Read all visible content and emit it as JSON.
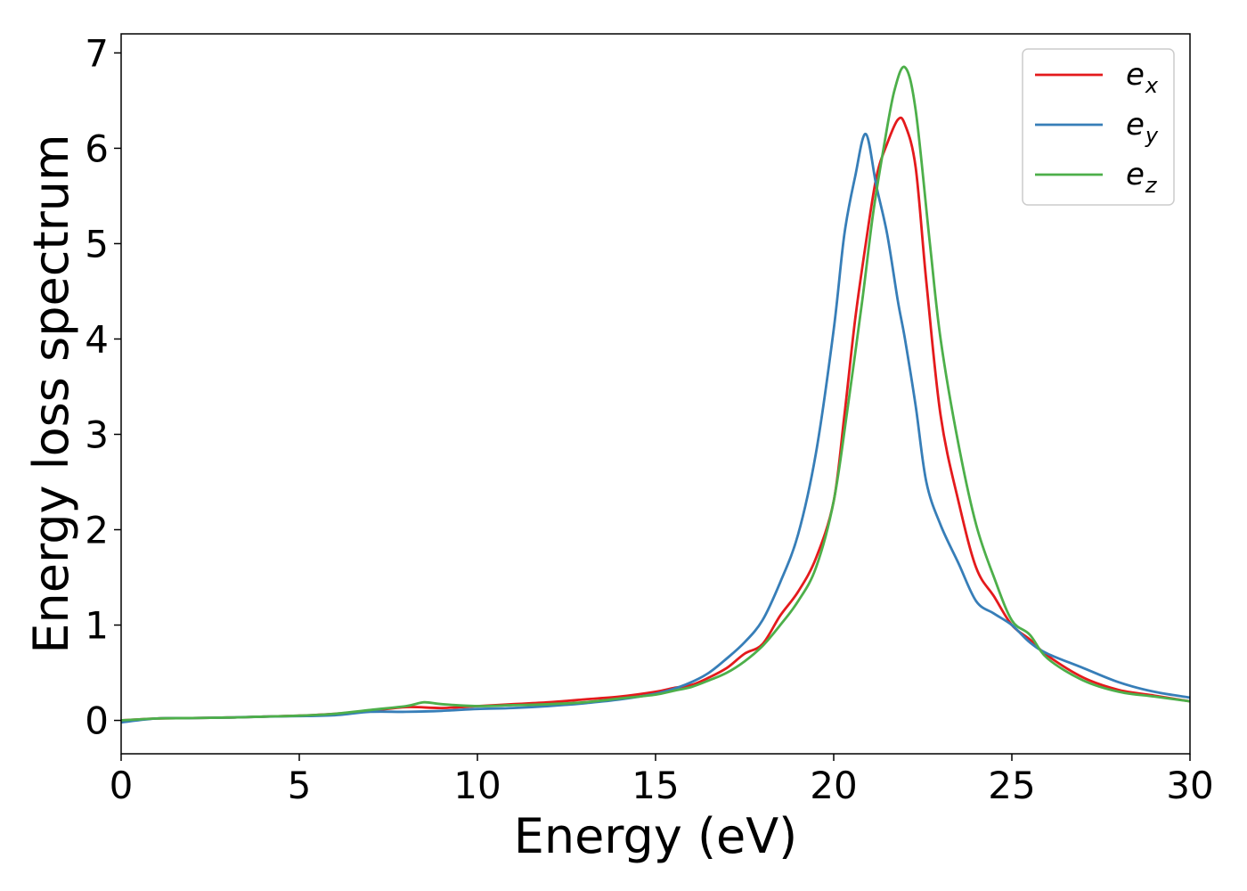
{
  "chart_data": {
    "type": "line",
    "xlabel": "Energy (eV)",
    "ylabel": "Energy loss spectrum",
    "xlim": [
      0,
      30
    ],
    "ylim": [
      -0.35,
      7.2
    ],
    "xticks": [
      "0",
      "5",
      "10",
      "15",
      "20",
      "25",
      "30"
    ],
    "yticks": [
      "0",
      "1",
      "2",
      "3",
      "4",
      "5",
      "6",
      "7"
    ],
    "grid": false,
    "legend": "top-right",
    "series": [
      {
        "name": "e",
        "subscript": "x",
        "color": "#e41a1c",
        "x": [
          0,
          1,
          2,
          3,
          4,
          5,
          6,
          7,
          8,
          9,
          10,
          11,
          12,
          13,
          14,
          15,
          15.5,
          16,
          16.5,
          17,
          17.5,
          18,
          18.5,
          19,
          19.5,
          20,
          20.3,
          20.6,
          20.9,
          21.2,
          21.5,
          21.8,
          22.0,
          22.3,
          22.6,
          23.0,
          23.5,
          24,
          24.5,
          25,
          25.5,
          26,
          27,
          28,
          29,
          30
        ],
        "y": [
          0.0,
          0.02,
          0.025,
          0.03,
          0.04,
          0.05,
          0.07,
          0.1,
          0.14,
          0.13,
          0.15,
          0.17,
          0.19,
          0.22,
          0.25,
          0.3,
          0.34,
          0.37,
          0.45,
          0.55,
          0.7,
          0.8,
          1.1,
          1.35,
          1.7,
          2.3,
          3.2,
          4.2,
          5.0,
          5.7,
          6.05,
          6.3,
          6.25,
          5.8,
          4.6,
          3.2,
          2.3,
          1.6,
          1.3,
          1.0,
          0.85,
          0.68,
          0.45,
          0.32,
          0.26,
          0.2
        ]
      },
      {
        "name": "e",
        "subscript": "y",
        "color": "#377eb8",
        "x": [
          0,
          1,
          2,
          3,
          4,
          5,
          6,
          7,
          8,
          9,
          10,
          11,
          12,
          13,
          14,
          15,
          15.5,
          16,
          16.5,
          17,
          17.5,
          18,
          18.5,
          19,
          19.5,
          20,
          20.3,
          20.6,
          20.9,
          21.2,
          21.5,
          21.8,
          22.0,
          22.3,
          22.6,
          23.0,
          23.5,
          24,
          24.5,
          25,
          25.5,
          26,
          27,
          28,
          29,
          30
        ],
        "y": [
          -0.02,
          0.02,
          0.025,
          0.03,
          0.04,
          0.045,
          0.055,
          0.09,
          0.09,
          0.1,
          0.12,
          0.13,
          0.15,
          0.18,
          0.22,
          0.28,
          0.33,
          0.4,
          0.5,
          0.65,
          0.82,
          1.05,
          1.45,
          1.95,
          2.8,
          4.1,
          5.1,
          5.7,
          6.15,
          5.6,
          5.1,
          4.4,
          4.0,
          3.3,
          2.5,
          2.05,
          1.65,
          1.25,
          1.12,
          1.0,
          0.82,
          0.7,
          0.55,
          0.4,
          0.3,
          0.24
        ]
      },
      {
        "name": "e",
        "subscript": "z",
        "color": "#4daf4a",
        "x": [
          0,
          1,
          2,
          3,
          4,
          5,
          6,
          7,
          8,
          8.5,
          9,
          10,
          11,
          12,
          13,
          14,
          15,
          15.5,
          16,
          16.5,
          17,
          17.5,
          18,
          18.5,
          19,
          19.5,
          20,
          20.4,
          20.8,
          21.1,
          21.4,
          21.7,
          22.0,
          22.3,
          22.7,
          23.0,
          23.5,
          24,
          24.5,
          25,
          25.5,
          26,
          27,
          28,
          29,
          30
        ],
        "y": [
          0.0,
          0.02,
          0.025,
          0.03,
          0.04,
          0.05,
          0.07,
          0.11,
          0.15,
          0.19,
          0.17,
          0.15,
          0.16,
          0.17,
          0.19,
          0.23,
          0.27,
          0.31,
          0.35,
          0.42,
          0.5,
          0.62,
          0.78,
          1.0,
          1.25,
          1.6,
          2.3,
          3.3,
          4.4,
          5.3,
          6.0,
          6.6,
          6.85,
          6.4,
          5.0,
          4.0,
          2.9,
          2.05,
          1.5,
          1.05,
          0.9,
          0.65,
          0.42,
          0.3,
          0.25,
          0.2
        ]
      }
    ]
  }
}
